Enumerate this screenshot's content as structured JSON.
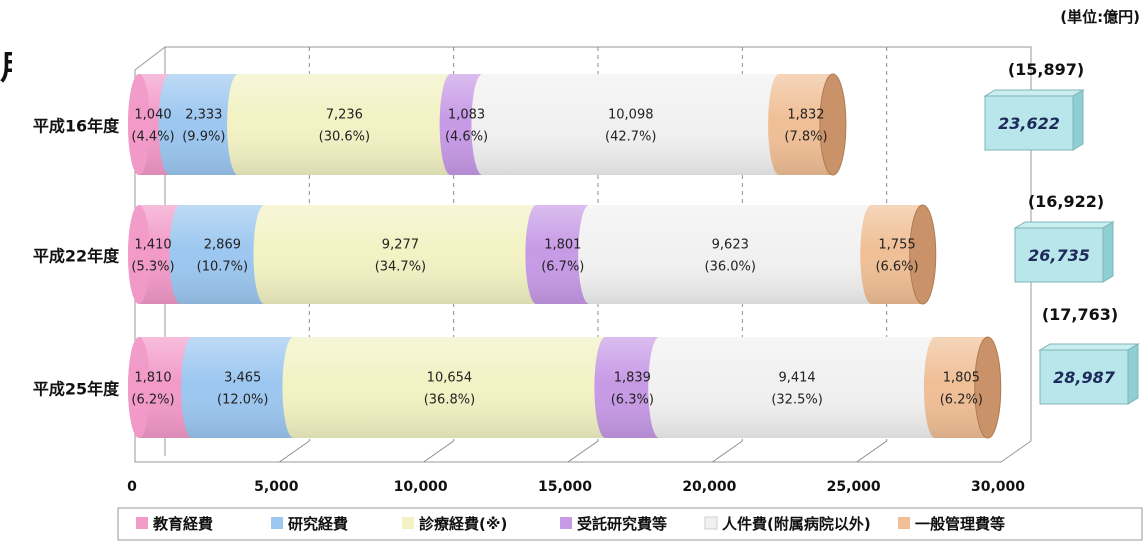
{
  "unit_label": "(単位:億円)",
  "cutoff_glyph": "用",
  "chart_data": {
    "type": "bar",
    "orientation": "horizontal",
    "stacked": true,
    "style": "3d-cylinder",
    "categories": [
      "平成16年度",
      "平成22年度",
      "平成25年度"
    ],
    "xlim": [
      0,
      30000
    ],
    "xticks": [
      0,
      5000,
      10000,
      15000,
      20000,
      25000,
      30000
    ],
    "xtick_labels": [
      "0",
      "5,000",
      "10,000",
      "15,000",
      "20,000",
      "25,000",
      "30,000"
    ],
    "grid": true,
    "legend_position": "bottom",
    "series": [
      {
        "name": "教育経費",
        "color": "#f29ac8",
        "values": [
          1040,
          1410,
          1810
        ],
        "labels": [
          "1,040",
          "1,410",
          "1,810"
        ],
        "pct": [
          "(4.4%)",
          "(5.3%)",
          "(6.2%)"
        ]
      },
      {
        "name": "研究経費",
        "color": "#9cc7f0",
        "values": [
          2333,
          2869,
          3465
        ],
        "labels": [
          "2,333",
          "2,869",
          "3,465"
        ],
        "pct": [
          "(9.9%)",
          "(10.7%)",
          "(12.0%)"
        ]
      },
      {
        "name": "診療経費(※)",
        "color": "#f2f2c4",
        "values": [
          7236,
          9277,
          10654
        ],
        "labels": [
          "7,236",
          "9,277",
          "10,654"
        ],
        "pct": [
          "(30.6%)",
          "(34.7%)",
          "(36.8%)"
        ]
      },
      {
        "name": "受託研究費等",
        "color": "#c79ae6",
        "values": [
          1083,
          1801,
          1839
        ],
        "labels": [
          "1,083",
          "1,801",
          "1,839"
        ],
        "pct": [
          "(4.6%)",
          "(6.7%)",
          "(6.3%)"
        ]
      },
      {
        "name": "人件費(附属病院以外)",
        "color": "#f1f1f1",
        "values": [
          10098,
          9623,
          9414
        ],
        "labels": [
          "10,098",
          "9,623",
          "9,414"
        ],
        "pct": [
          "(42.7%)",
          "(36.0%)",
          "(32.5%)"
        ]
      },
      {
        "name": "一般管理費等",
        "color": "#f0bf96",
        "values": [
          1832,
          1755,
          1805
        ],
        "labels": [
          "1,832",
          "1,755",
          "1,805"
        ],
        "pct": [
          "(7.8%)",
          "(6.6%)",
          "(6.2%)"
        ]
      }
    ],
    "totals": [
      {
        "paren": "(15,897)",
        "box": "23,622"
      },
      {
        "paren": "(16,922)",
        "box": "26,735"
      },
      {
        "paren": "(17,763)",
        "box": "28,987"
      }
    ]
  }
}
